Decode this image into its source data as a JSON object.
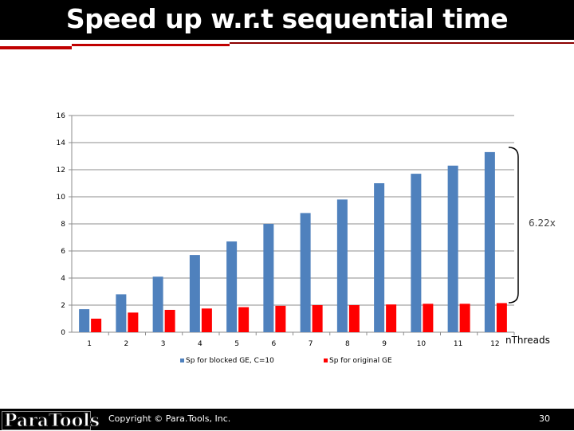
{
  "slide": {
    "title": "Speed up w.r.t sequential time",
    "copyright": "Copyright © Para.Tools, Inc.",
    "page_number": "30",
    "logo_text": "ParaTools"
  },
  "chart_data": {
    "type": "bar",
    "categories": [
      "1",
      "2",
      "3",
      "4",
      "5",
      "6",
      "7",
      "8",
      "9",
      "10",
      "11",
      "12"
    ],
    "series": [
      {
        "name": "Sp for blocked GE, C=10",
        "color": "#4f81bd",
        "values": [
          1.7,
          2.8,
          4.1,
          5.7,
          6.7,
          8.0,
          8.8,
          9.8,
          11.0,
          11.7,
          12.3,
          13.3
        ]
      },
      {
        "name": "Sp for original GE",
        "color": "#ff0000",
        "values": [
          1.0,
          1.45,
          1.65,
          1.75,
          1.85,
          1.95,
          2.0,
          2.0,
          2.05,
          2.1,
          2.1,
          2.15
        ]
      }
    ],
    "yticks": [
      "0",
      "2",
      "4",
      "6",
      "8",
      "10",
      "12",
      "14",
      "16"
    ],
    "ylim": [
      0,
      16
    ],
    "xlabel": "nThreads",
    "annotation": "6.22x",
    "grid": true,
    "legend": "bottom"
  }
}
